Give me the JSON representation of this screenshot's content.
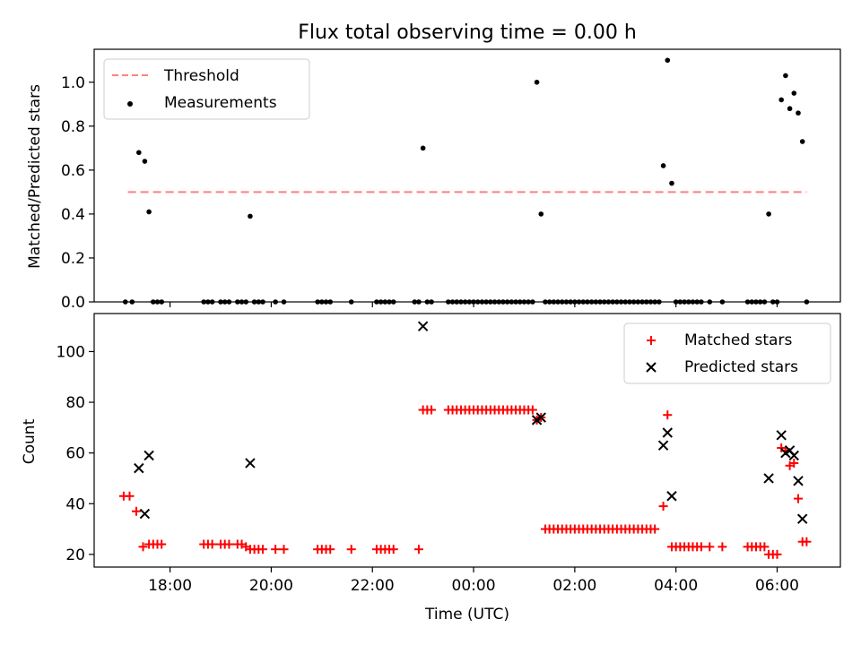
{
  "chart_data": [
    {
      "type": "scatter",
      "title": "Flux total observing time = 0.00 h",
      "xlabel": "",
      "ylabel": "Matched/Predicted stars",
      "x_unit": "UTC time (night spanning midnight; times after 00:00 are next day)",
      "xlim": [
        "16:30",
        "07:15"
      ],
      "ylim": [
        0,
        1.15
      ],
      "yticks": [
        "0.0",
        "0.2",
        "0.4",
        "0.6",
        "0.8",
        "1.0"
      ],
      "legend_position": "upper-left",
      "threshold": {
        "name": "Threshold",
        "y": 0.5,
        "x_range": [
          "17:10",
          "06:35"
        ],
        "color": "#ff7f7f",
        "style": "dashed"
      },
      "series": [
        {
          "name": "Measurements",
          "color": "#000000",
          "marker": "dot",
          "points": [
            [
              "17:07",
              0
            ],
            [
              "17:15",
              0
            ],
            [
              "17:23",
              0.68
            ],
            [
              "17:30",
              0.64
            ],
            [
              "17:35",
              0.41
            ],
            [
              "17:40",
              0
            ],
            [
              "17:45",
              0
            ],
            [
              "17:50",
              0
            ],
            [
              "18:40",
              0
            ],
            [
              "18:45",
              0
            ],
            [
              "18:50",
              0
            ],
            [
              "19:00",
              0
            ],
            [
              "19:05",
              0
            ],
            [
              "19:10",
              0
            ],
            [
              "19:20",
              0
            ],
            [
              "19:25",
              0
            ],
            [
              "19:30",
              0
            ],
            [
              "19:35",
              0.39
            ],
            [
              "19:40",
              0
            ],
            [
              "19:45",
              0
            ],
            [
              "19:50",
              0
            ],
            [
              "20:05",
              0
            ],
            [
              "20:15",
              0
            ],
            [
              "20:55",
              0
            ],
            [
              "21:00",
              0
            ],
            [
              "21:05",
              0
            ],
            [
              "21:10",
              0
            ],
            [
              "21:35",
              0
            ],
            [
              "22:05",
              0
            ],
            [
              "22:10",
              0
            ],
            [
              "22:15",
              0
            ],
            [
              "22:20",
              0
            ],
            [
              "22:25",
              0
            ],
            [
              "22:50",
              0
            ],
            [
              "22:55",
              0
            ],
            [
              "23:00",
              0.7
            ],
            [
              "23:05",
              0
            ],
            [
              "23:10",
              0
            ],
            [
              "23:30",
              0
            ],
            [
              "23:35",
              0
            ],
            [
              "23:40",
              0
            ],
            [
              "23:45",
              0
            ],
            [
              "23:50",
              0
            ],
            [
              "23:55",
              0
            ],
            [
              "00:00",
              0
            ],
            [
              "00:05",
              0
            ],
            [
              "00:10",
              0
            ],
            [
              "00:15",
              0
            ],
            [
              "00:20",
              0
            ],
            [
              "00:25",
              0
            ],
            [
              "00:30",
              0
            ],
            [
              "00:35",
              0
            ],
            [
              "00:40",
              0
            ],
            [
              "00:45",
              0
            ],
            [
              "00:50",
              0
            ],
            [
              "00:55",
              0
            ],
            [
              "01:00",
              0
            ],
            [
              "01:05",
              0
            ],
            [
              "01:10",
              0
            ],
            [
              "01:15",
              1.0
            ],
            [
              "01:20",
              0.4
            ],
            [
              "01:25",
              0
            ],
            [
              "01:30",
              0
            ],
            [
              "01:35",
              0
            ],
            [
              "01:40",
              0
            ],
            [
              "01:45",
              0
            ],
            [
              "01:50",
              0
            ],
            [
              "01:55",
              0
            ],
            [
              "02:00",
              0
            ],
            [
              "02:05",
              0
            ],
            [
              "02:10",
              0
            ],
            [
              "02:15",
              0
            ],
            [
              "02:20",
              0
            ],
            [
              "02:25",
              0
            ],
            [
              "02:30",
              0
            ],
            [
              "02:35",
              0
            ],
            [
              "02:40",
              0
            ],
            [
              "02:45",
              0
            ],
            [
              "02:50",
              0
            ],
            [
              "02:55",
              0
            ],
            [
              "03:00",
              0
            ],
            [
              "03:05",
              0
            ],
            [
              "03:10",
              0
            ],
            [
              "03:15",
              0
            ],
            [
              "03:20",
              0
            ],
            [
              "03:25",
              0
            ],
            [
              "03:30",
              0
            ],
            [
              "03:35",
              0
            ],
            [
              "03:40",
              0
            ],
            [
              "03:45",
              0.62
            ],
            [
              "03:50",
              1.1
            ],
            [
              "03:55",
              0.54
            ],
            [
              "04:00",
              0
            ],
            [
              "04:05",
              0
            ],
            [
              "04:10",
              0
            ],
            [
              "04:15",
              0
            ],
            [
              "04:20",
              0
            ],
            [
              "04:25",
              0
            ],
            [
              "04:30",
              0
            ],
            [
              "04:40",
              0
            ],
            [
              "04:55",
              0
            ],
            [
              "05:25",
              0
            ],
            [
              "05:30",
              0
            ],
            [
              "05:35",
              0
            ],
            [
              "05:40",
              0
            ],
            [
              "05:45",
              0
            ],
            [
              "05:50",
              0.4
            ],
            [
              "05:55",
              0
            ],
            [
              "06:00",
              0
            ],
            [
              "06:05",
              0.92
            ],
            [
              "06:10",
              1.03
            ],
            [
              "06:15",
              0.88
            ],
            [
              "06:20",
              0.95
            ],
            [
              "06:25",
              0.86
            ],
            [
              "06:30",
              0.73
            ],
            [
              "06:35",
              0
            ]
          ]
        }
      ]
    },
    {
      "type": "scatter",
      "title": "",
      "xlabel": "Time (UTC)",
      "ylabel": "Count",
      "xlim": [
        "16:30",
        "07:15"
      ],
      "xticks": [
        "18:00",
        "20:00",
        "22:00",
        "00:00",
        "02:00",
        "04:00",
        "06:00"
      ],
      "ylim": [
        15,
        115
      ],
      "yticks": [
        "20",
        "40",
        "60",
        "80",
        "100"
      ],
      "legend_position": "upper-right",
      "series": [
        {
          "name": "Matched stars",
          "color": "#ff0000",
          "marker": "plus",
          "points": [
            [
              "17:05",
              43
            ],
            [
              "17:12",
              43
            ],
            [
              "17:20",
              37
            ],
            [
              "17:28",
              23
            ],
            [
              "17:35",
              24
            ],
            [
              "17:40",
              24
            ],
            [
              "17:45",
              24
            ],
            [
              "17:50",
              24
            ],
            [
              "18:40",
              24
            ],
            [
              "18:45",
              24
            ],
            [
              "18:50",
              24
            ],
            [
              "19:00",
              24
            ],
            [
              "19:05",
              24
            ],
            [
              "19:10",
              24
            ],
            [
              "19:20",
              24
            ],
            [
              "19:25",
              24
            ],
            [
              "19:30",
              23
            ],
            [
              "19:35",
              22
            ],
            [
              "19:40",
              22
            ],
            [
              "19:45",
              22
            ],
            [
              "19:50",
              22
            ],
            [
              "20:05",
              22
            ],
            [
              "20:15",
              22
            ],
            [
              "20:55",
              22
            ],
            [
              "21:00",
              22
            ],
            [
              "21:05",
              22
            ],
            [
              "21:10",
              22
            ],
            [
              "21:35",
              22
            ],
            [
              "22:05",
              22
            ],
            [
              "22:10",
              22
            ],
            [
              "22:15",
              22
            ],
            [
              "22:20",
              22
            ],
            [
              "22:25",
              22
            ],
            [
              "22:55",
              22
            ],
            [
              "23:00",
              77
            ],
            [
              "23:05",
              77
            ],
            [
              "23:10",
              77
            ],
            [
              "23:30",
              77
            ],
            [
              "23:35",
              77
            ],
            [
              "23:40",
              77
            ],
            [
              "23:45",
              77
            ],
            [
              "23:50",
              77
            ],
            [
              "23:55",
              77
            ],
            [
              "00:00",
              77
            ],
            [
              "00:05",
              77
            ],
            [
              "00:10",
              77
            ],
            [
              "00:15",
              77
            ],
            [
              "00:20",
              77
            ],
            [
              "00:25",
              77
            ],
            [
              "00:30",
              77
            ],
            [
              "00:35",
              77
            ],
            [
              "00:40",
              77
            ],
            [
              "00:45",
              77
            ],
            [
              "00:50",
              77
            ],
            [
              "00:55",
              77
            ],
            [
              "01:00",
              77
            ],
            [
              "01:05",
              77
            ],
            [
              "01:10",
              77
            ],
            [
              "01:15",
              73
            ],
            [
              "01:20",
              74
            ],
            [
              "01:25",
              30
            ],
            [
              "01:30",
              30
            ],
            [
              "01:35",
              30
            ],
            [
              "01:40",
              30
            ],
            [
              "01:45",
              30
            ],
            [
              "01:50",
              30
            ],
            [
              "01:55",
              30
            ],
            [
              "02:00",
              30
            ],
            [
              "02:05",
              30
            ],
            [
              "02:10",
              30
            ],
            [
              "02:15",
              30
            ],
            [
              "02:20",
              30
            ],
            [
              "02:25",
              30
            ],
            [
              "02:30",
              30
            ],
            [
              "02:35",
              30
            ],
            [
              "02:40",
              30
            ],
            [
              "02:45",
              30
            ],
            [
              "02:50",
              30
            ],
            [
              "02:55",
              30
            ],
            [
              "03:00",
              30
            ],
            [
              "03:05",
              30
            ],
            [
              "03:10",
              30
            ],
            [
              "03:15",
              30
            ],
            [
              "03:20",
              30
            ],
            [
              "03:25",
              30
            ],
            [
              "03:30",
              30
            ],
            [
              "03:35",
              30
            ],
            [
              "03:45",
              39
            ],
            [
              "03:50",
              75
            ],
            [
              "03:55",
              23
            ],
            [
              "04:00",
              23
            ],
            [
              "04:05",
              23
            ],
            [
              "04:10",
              23
            ],
            [
              "04:15",
              23
            ],
            [
              "04:20",
              23
            ],
            [
              "04:25",
              23
            ],
            [
              "04:30",
              23
            ],
            [
              "04:40",
              23
            ],
            [
              "04:55",
              23
            ],
            [
              "05:25",
              23
            ],
            [
              "05:30",
              23
            ],
            [
              "05:35",
              23
            ],
            [
              "05:40",
              23
            ],
            [
              "05:45",
              23
            ],
            [
              "05:50",
              20
            ],
            [
              "05:55",
              20
            ],
            [
              "06:00",
              20
            ],
            [
              "06:05",
              62
            ],
            [
              "06:10",
              61
            ],
            [
              "06:15",
              55
            ],
            [
              "06:20",
              56
            ],
            [
              "06:25",
              42
            ],
            [
              "06:30",
              25
            ],
            [
              "06:35",
              25
            ]
          ]
        },
        {
          "name": "Predicted stars",
          "color": "#000000",
          "marker": "x",
          "points": [
            [
              "17:23",
              54
            ],
            [
              "17:30",
              36
            ],
            [
              "17:35",
              59
            ],
            [
              "19:35",
              56
            ],
            [
              "23:00",
              110
            ],
            [
              "01:15",
              73
            ],
            [
              "01:20",
              74
            ],
            [
              "03:45",
              63
            ],
            [
              "03:50",
              68
            ],
            [
              "03:55",
              43
            ],
            [
              "05:50",
              50
            ],
            [
              "06:05",
              67
            ],
            [
              "06:10",
              60
            ],
            [
              "06:15",
              61
            ],
            [
              "06:20",
              59
            ],
            [
              "06:25",
              49
            ],
            [
              "06:30",
              34
            ]
          ]
        }
      ]
    }
  ]
}
